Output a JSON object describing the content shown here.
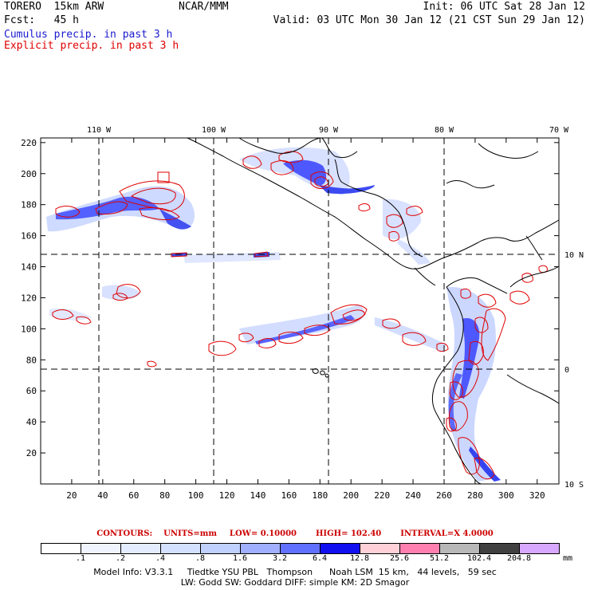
{
  "header": {
    "run": "TORERO  15km ARW",
    "org": "NCAR/MMM",
    "init": "Init: 06 UTC Sat 28 Jan 12",
    "fcst": "Fcst:   45 h",
    "valid": "Valid: 03 UTC Mon 30 Jan 12 (21 CST Sun 29 Jan 12)"
  },
  "legend": {
    "cumulus": "Cumulus precip. in past 3 h",
    "explicit": "Explicit precip. in past 3 h"
  },
  "axes": {
    "lon_labels": [
      "110 W",
      "100 W",
      "90 W",
      "80 W",
      "70 W"
    ],
    "lat_labels": [
      "10 N",
      "0",
      "10 S"
    ],
    "x_ticks": [
      "20",
      "40",
      "60",
      "80",
      "100",
      "120",
      "140",
      "160",
      "180",
      "200",
      "220",
      "240",
      "260",
      "280",
      "300",
      "320"
    ],
    "y_ticks": [
      "20",
      "40",
      "60",
      "80",
      "100",
      "120",
      "140",
      "160",
      "180",
      "200",
      "220"
    ]
  },
  "contours": {
    "label": "CONTOURS:",
    "units": "UNITS=mm",
    "low": "LOW= 0.10000",
    "high": "HIGH= 102.40",
    "interval": "INTERVAL=X 4.0000"
  },
  "colorbar": {
    "labels": [
      ".1",
      ".2",
      ".4",
      ".8",
      "1.6",
      "3.2",
      "6.4",
      "12.8",
      "25.6",
      "51.2",
      "102.4",
      "204.8"
    ],
    "unit": "mm",
    "colors": [
      "#ffffff",
      "#f0f4ff",
      "#e4ecff",
      "#d4e0ff",
      "#c0d0ff",
      "#a0b0ff",
      "#6070ff",
      "#1010f0",
      "#ffd0d8",
      "#ff80b0",
      "#b8b8b8",
      "#404040",
      "#d8a8ff"
    ]
  },
  "model_info": {
    "line1": "Model Info: V3.3.1     Tiedtke YSU PBL   Thompson      Noah LSM  15 km,   44 levels,   59 sec",
    "line2": "LW: Godd SW: Goddard DIFF: simple KM: 2D Smagor"
  }
}
